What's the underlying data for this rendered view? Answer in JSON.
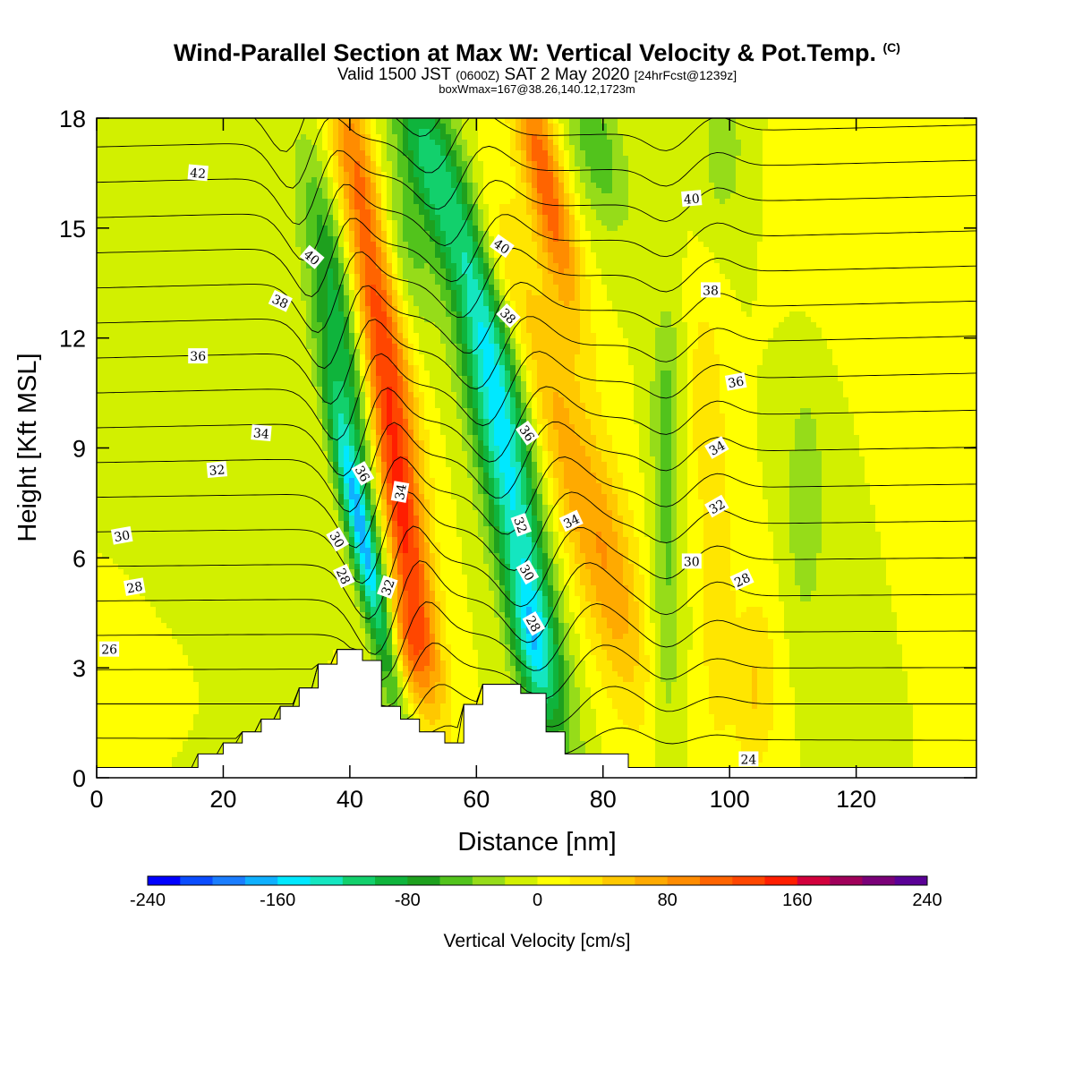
{
  "header": {
    "title": "Wind-Parallel Section at Max W: Vertical Velocity & Pot.Temp.",
    "copyright": "(C)",
    "valid_prefix": "Valid 1500 JST",
    "valid_utc": "(0600Z)",
    "valid_date": "SAT 2 May 2020",
    "forecast": "[24hrFcst@1239z]",
    "box_info": "boxWmax=167@38.26,140.12,1723m"
  },
  "chart_data": {
    "type": "heatmap",
    "title": "Wind-Parallel Section at Max W: Vertical Velocity & Pot.Temp.",
    "xlabel": "Distance [nm]",
    "ylabel": "Height [Kft MSL]",
    "xlim": [
      0,
      139
    ],
    "ylim": [
      0,
      18
    ],
    "x_ticks": [
      0,
      20,
      40,
      60,
      80,
      100,
      120
    ],
    "y_ticks": [
      0,
      3,
      6,
      9,
      12,
      15,
      18
    ],
    "colorbar": {
      "title": "Vertical Velocity [cm/s]",
      "min": -240,
      "max": 240,
      "ticks": [
        -240,
        -160,
        -80,
        0,
        80,
        160,
        240
      ],
      "colors": [
        "#0000ff",
        "#0a4cff",
        "#1a7dff",
        "#0fb0ff",
        "#00e8ff",
        "#14e6c0",
        "#12d06c",
        "#0fb43c",
        "#1ea01e",
        "#52c31c",
        "#96dc19",
        "#d2f000",
        "#ffff00",
        "#ffe600",
        "#ffc800",
        "#ffaa00",
        "#ff8c00",
        "#ff6400",
        "#ff4600",
        "#ff1e00",
        "#d2003c",
        "#a0005a",
        "#7a0078",
        "#5a0096"
      ]
    },
    "terrain_kft": [
      [
        0,
        0.28
      ],
      [
        16,
        0.28
      ],
      [
        16,
        0.65
      ],
      [
        20,
        0.65
      ],
      [
        20,
        0.95
      ],
      [
        23,
        0.95
      ],
      [
        23,
        1.25
      ],
      [
        26,
        1.25
      ],
      [
        26,
        1.6
      ],
      [
        29,
        1.6
      ],
      [
        29,
        1.95
      ],
      [
        32,
        1.95
      ],
      [
        32,
        2.45
      ],
      [
        35,
        2.45
      ],
      [
        35,
        3.1
      ],
      [
        38,
        3.1
      ],
      [
        38,
        3.5
      ],
      [
        42,
        3.5
      ],
      [
        42,
        3.2
      ],
      [
        45,
        3.2
      ],
      [
        45,
        1.95
      ],
      [
        48,
        1.95
      ],
      [
        48,
        1.6
      ],
      [
        51,
        1.6
      ],
      [
        51,
        1.25
      ],
      [
        55,
        1.25
      ],
      [
        55,
        0.95
      ],
      [
        58,
        0.95
      ],
      [
        58,
        2.0
      ],
      [
        61,
        2.0
      ],
      [
        61,
        2.55
      ],
      [
        67,
        2.55
      ],
      [
        67,
        2.3
      ],
      [
        71,
        2.3
      ],
      [
        71,
        1.25
      ],
      [
        74,
        1.25
      ],
      [
        74,
        0.65
      ],
      [
        84,
        0.65
      ],
      [
        84,
        0.28
      ],
      [
        139,
        0.28
      ]
    ],
    "velocity_features": [
      {
        "x": 42,
        "y": 6.5,
        "sx": 1.6,
        "sy": 3.0,
        "tilt": -0.3,
        "value": -165
      },
      {
        "x": 40,
        "y": 10.8,
        "sx": 2.2,
        "sy": 2.8,
        "tilt": -0.3,
        "value": -80
      },
      {
        "x": 37,
        "y": 14.5,
        "sx": 2.5,
        "sy": 2.2,
        "tilt": -0.3,
        "value": -45
      },
      {
        "x": 48,
        "y": 7.2,
        "sx": 2.3,
        "sy": 3.3,
        "tilt": -0.25,
        "value": 150
      },
      {
        "x": 45,
        "y": 12.5,
        "sx": 2.3,
        "sy": 2.8,
        "tilt": -0.3,
        "value": 105
      },
      {
        "x": 41,
        "y": 17.0,
        "sx": 2.3,
        "sy": 1.8,
        "tilt": -0.3,
        "value": 75
      },
      {
        "x": 49,
        "y": 3.6,
        "sx": 2.3,
        "sy": 1.1,
        "tilt": -0.25,
        "value": 70
      },
      {
        "x": 52,
        "y": 17.0,
        "sx": 3.0,
        "sy": 2.0,
        "tilt": -0.35,
        "value": -95
      },
      {
        "x": 49,
        "y": 14.5,
        "sx": 2.3,
        "sy": 1.6,
        "tilt": -0.3,
        "value": -40
      },
      {
        "x": 66,
        "y": 7.0,
        "sx": 3.0,
        "sy": 4.5,
        "tilt": -0.28,
        "value": -125
      },
      {
        "x": 62,
        "y": 12.5,
        "sx": 3.0,
        "sy": 3.0,
        "tilt": -0.3,
        "value": -95
      },
      {
        "x": 69,
        "y": 3.6,
        "sx": 2.2,
        "sy": 1.3,
        "tilt": -0.2,
        "value": -70
      },
      {
        "x": 74,
        "y": 9.0,
        "sx": 3.5,
        "sy": 4.0,
        "tilt": -0.35,
        "value": 65
      },
      {
        "x": 71,
        "y": 16.2,
        "sx": 2.2,
        "sy": 2.6,
        "tilt": -0.3,
        "value": 115
      },
      {
        "x": 63,
        "y": 14.0,
        "sx": 2.5,
        "sy": 1.8,
        "tilt": -0.3,
        "value": 40
      },
      {
        "x": 79,
        "y": 17.2,
        "sx": 3.0,
        "sy": 1.6,
        "tilt": -0.3,
        "value": -55
      },
      {
        "x": 82,
        "y": 5.5,
        "sx": 3.0,
        "sy": 2.5,
        "tilt": -0.2,
        "value": 45
      },
      {
        "x": 90,
        "y": 5.5,
        "sx": 1.6,
        "sy": 3.5,
        "tilt": 0.0,
        "value": -42
      },
      {
        "x": 90,
        "y": 10.5,
        "sx": 1.8,
        "sy": 1.8,
        "tilt": 0.0,
        "value": -32
      },
      {
        "x": 98,
        "y": 5.0,
        "sx": 1.8,
        "sy": 3.0,
        "tilt": 0.0,
        "value": 38
      },
      {
        "x": 96,
        "y": 10.5,
        "sx": 2.0,
        "sy": 2.0,
        "tilt": 0.0,
        "value": 32
      },
      {
        "x": 99,
        "y": 17.2,
        "sx": 2.5,
        "sy": 1.6,
        "tilt": 0.0,
        "value": -32
      },
      {
        "x": 112,
        "y": 7.5,
        "sx": 2.2,
        "sy": 2.4,
        "tilt": 0.0,
        "value": -38
      },
      {
        "x": 104,
        "y": 2.5,
        "sx": 2.5,
        "sy": 1.8,
        "tilt": 0.0,
        "value": 42
      },
      {
        "x": 115,
        "y": 16.0,
        "sx": 4.0,
        "sy": 2.0,
        "tilt": 0.0,
        "value": 20
      },
      {
        "x": 12,
        "y": 14.0,
        "sx": 10.0,
        "sy": 2.5,
        "tilt": 0.0,
        "value": -16
      },
      {
        "x": 18,
        "y": 8.0,
        "sx": 6.0,
        "sy": 4.0,
        "tilt": 0.0,
        "value": -14
      },
      {
        "x": 12,
        "y": 3.0,
        "sx": 8.0,
        "sy": 1.5,
        "tilt": 0.0,
        "value": 6
      }
    ],
    "theta_contours": {
      "levels": [
        24,
        25,
        26,
        27,
        28,
        29,
        30,
        31,
        32,
        33,
        34,
        35,
        36,
        37,
        38,
        39,
        40,
        41,
        42,
        43
      ],
      "labels": [
        {
          "x": 2,
          "y": 3.5,
          "text": "26",
          "angle": 0
        },
        {
          "x": 6,
          "y": 5.2,
          "text": "28",
          "angle": -10
        },
        {
          "x": 4,
          "y": 6.6,
          "text": "30",
          "angle": -10
        },
        {
          "x": 19,
          "y": 8.4,
          "text": "32",
          "angle": -5
        },
        {
          "x": 26,
          "y": 9.4,
          "text": "34",
          "angle": 5
        },
        {
          "x": 16,
          "y": 11.5,
          "text": "36",
          "angle": 0
        },
        {
          "x": 29,
          "y": 13.0,
          "text": "38",
          "angle": 25
        },
        {
          "x": 34,
          "y": 14.2,
          "text": "40",
          "angle": 40
        },
        {
          "x": 16,
          "y": 16.5,
          "text": "42",
          "angle": 5
        },
        {
          "x": 39,
          "y": 5.5,
          "text": "28",
          "angle": 65
        },
        {
          "x": 38,
          "y": 6.5,
          "text": "30",
          "angle": 60
        },
        {
          "x": 42,
          "y": 8.3,
          "text": "36",
          "angle": 60
        },
        {
          "x": 46,
          "y": 5.2,
          "text": "32",
          "angle": -70
        },
        {
          "x": 48,
          "y": 7.8,
          "text": "34",
          "angle": -80
        },
        {
          "x": 69,
          "y": 4.2,
          "text": "28",
          "angle": 60
        },
        {
          "x": 68,
          "y": 5.6,
          "text": "30",
          "angle": 60
        },
        {
          "x": 67,
          "y": 6.9,
          "text": "32",
          "angle": 70
        },
        {
          "x": 68,
          "y": 9.4,
          "text": "36",
          "angle": 55
        },
        {
          "x": 65,
          "y": 12.6,
          "text": "38",
          "angle": 45
        },
        {
          "x": 64,
          "y": 14.5,
          "text": "40",
          "angle": 35
        },
        {
          "x": 75,
          "y": 7.0,
          "text": "34",
          "angle": -25
        },
        {
          "x": 94,
          "y": 5.9,
          "text": "30",
          "angle": 0
        },
        {
          "x": 102,
          "y": 5.4,
          "text": "28",
          "angle": -25
        },
        {
          "x": 98,
          "y": 7.4,
          "text": "32",
          "angle": -30
        },
        {
          "x": 98,
          "y": 9.0,
          "text": "34",
          "angle": -30
        },
        {
          "x": 101,
          "y": 10.8,
          "text": "36",
          "angle": -10
        },
        {
          "x": 97,
          "y": 13.3,
          "text": "38",
          "angle": 0
        },
        {
          "x": 94,
          "y": 15.8,
          "text": "40",
          "angle": -5
        },
        {
          "x": 103,
          "y": 0.5,
          "text": "24",
          "angle": 0
        }
      ]
    }
  }
}
